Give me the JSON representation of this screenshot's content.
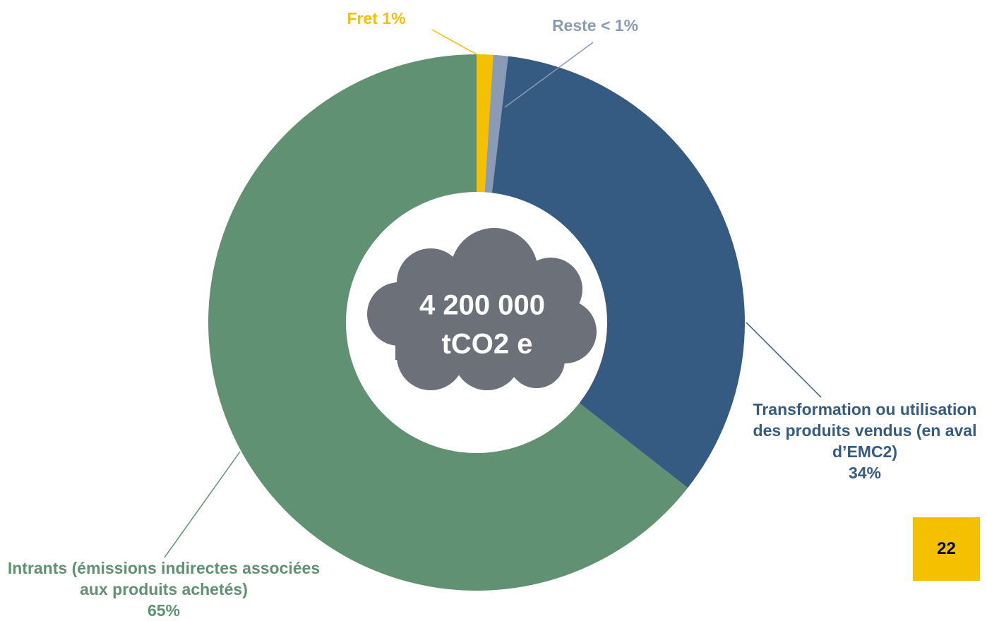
{
  "chart_data": {
    "type": "donut",
    "categories": [
      "Fret",
      "Reste",
      "Transformation ou utilisation des produits vendus (en aval d’EMC2)",
      "Intrants (émissions indirectes associées aux produits achetés)"
    ],
    "values": [
      1,
      0.9,
      34,
      65
    ],
    "value_labels": [
      "1%",
      "< 1%",
      "34%",
      "65%"
    ],
    "colors": [
      "#f5c000",
      "#8a9bb5",
      "#365b82",
      "#5f9172"
    ],
    "center_label": [
      "4 200 000",
      "tCO2 e"
    ]
  },
  "page_number": "22"
}
